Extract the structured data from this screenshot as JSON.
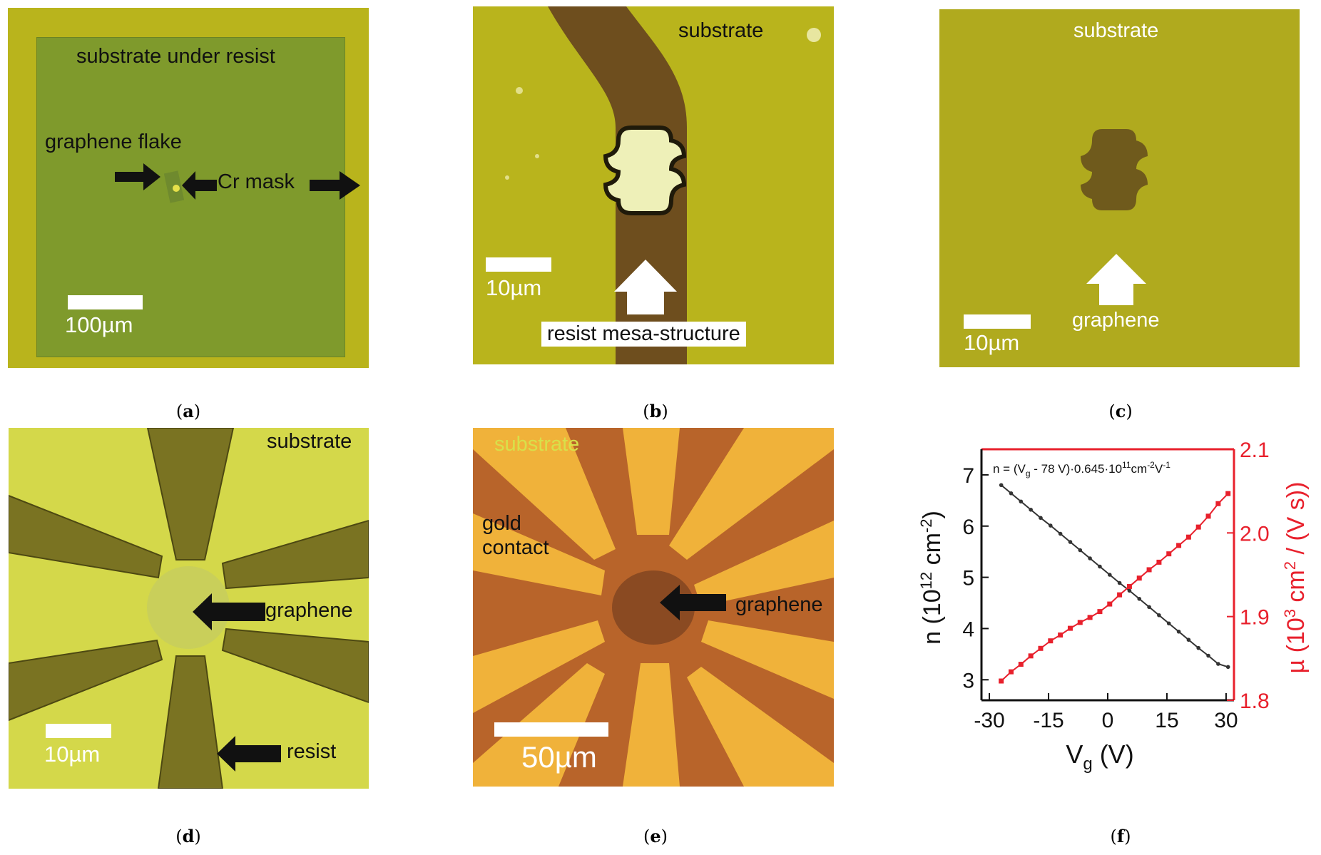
{
  "panels": {
    "a": {
      "caption": "a",
      "labels": {
        "substrate": "substrate under resist",
        "flake": "graphene flake",
        "mask": "Cr mask",
        "scale": "100µm"
      }
    },
    "b": {
      "caption": "b",
      "labels": {
        "substrate": "substrate",
        "scale": "10µm",
        "mesa": "resist mesa-structure"
      }
    },
    "c": {
      "caption": "c",
      "labels": {
        "substrate": "substrate",
        "scale": "10µm",
        "graphene": "graphene"
      }
    },
    "d": {
      "caption": "d",
      "labels": {
        "substrate": "substrate",
        "graphene": "graphene",
        "scale": "10µm",
        "resist": "resist"
      }
    },
    "e": {
      "caption": "e",
      "labels": {
        "substrate": "substrate",
        "gold_line1": "gold",
        "gold_line2": "contact",
        "graphene": "graphene",
        "scale": "50µm"
      }
    },
    "f": {
      "caption": "f"
    }
  },
  "colors": {
    "substrate_yellow": "#b9b41c",
    "resist_green": "#7f9a2c",
    "resist_brown": "#6e4e1e",
    "copper": "#b8642a",
    "gold": "#f0b23a",
    "left_series": "#333333",
    "right_series": "#e8202c"
  },
  "chart_data": {
    "type": "line",
    "annotation": "n = (Vg - 78 V)·0.645·10¹¹cm⁻²V⁻¹",
    "annotation_parts": {
      "pre": "n = (V",
      "sub": "g",
      "mid": " - 78 V)·0.645·10",
      "sup1": "11",
      "mid2": "cm",
      "sup2": "-2",
      "mid3": "V",
      "sup3": "-1"
    },
    "xlabel": "Vg (V)",
    "xlabel_parts": {
      "main": "V",
      "sub": "g",
      "rest": " (V)"
    },
    "ylabel_left": "n (10¹² cm⁻²)",
    "ylabel_left_parts": {
      "pre": "n (10",
      "sup": "12",
      "mid": " cm",
      "sup2": "-2",
      "post": ")"
    },
    "ylabel_right": "µ (10³ cm² / (V s))",
    "ylabel_right_parts": {
      "pre": "µ (10",
      "sup": "3",
      "mid": " cm",
      "sup2": "2",
      "post": " / (V s))"
    },
    "xlim": [
      -32,
      32
    ],
    "ylim_left": [
      2.6,
      7.5
    ],
    "ylim_right": [
      1.8,
      2.1
    ],
    "xticks": [
      -30,
      -15,
      0,
      15,
      30
    ],
    "yticks_left": [
      3,
      4,
      5,
      6,
      7
    ],
    "yticks_right": [
      1.8,
      1.9,
      2.0,
      2.1
    ],
    "yticks_right_labels": [
      "1.8",
      "1.9",
      "2.0",
      "2.1"
    ],
    "series": [
      {
        "axis": "left",
        "x": [
          -27,
          -24.5,
          -22,
          -19.5,
          -17,
          -14.5,
          -12,
          -9.5,
          -7,
          -4.5,
          -2,
          0.5,
          3,
          5.5,
          8,
          10.5,
          13,
          15.5,
          18,
          20.5,
          23,
          25.5,
          28,
          30.5
        ],
        "values": [
          6.8,
          6.64,
          6.48,
          6.32,
          6.16,
          6.01,
          5.85,
          5.69,
          5.53,
          5.37,
          5.21,
          5.05,
          4.89,
          4.74,
          4.58,
          4.42,
          4.26,
          4.1,
          3.94,
          3.78,
          3.62,
          3.47,
          3.31,
          3.25
        ]
      },
      {
        "axis": "right",
        "x": [
          -27,
          -24.5,
          -22,
          -19.5,
          -17,
          -14.5,
          -12,
          -9.5,
          -7,
          -4.5,
          -2,
          0.5,
          3,
          5.5,
          8,
          10.5,
          13,
          15.5,
          18,
          20.5,
          23,
          25.5,
          28,
          30.5
        ],
        "values": [
          1.823,
          1.834,
          1.843,
          1.853,
          1.862,
          1.871,
          1.878,
          1.886,
          1.893,
          1.899,
          1.906,
          1.915,
          1.926,
          1.936,
          1.946,
          1.956,
          1.965,
          1.975,
          1.985,
          1.995,
          2.007,
          2.02,
          2.035,
          2.047
        ]
      }
    ]
  }
}
